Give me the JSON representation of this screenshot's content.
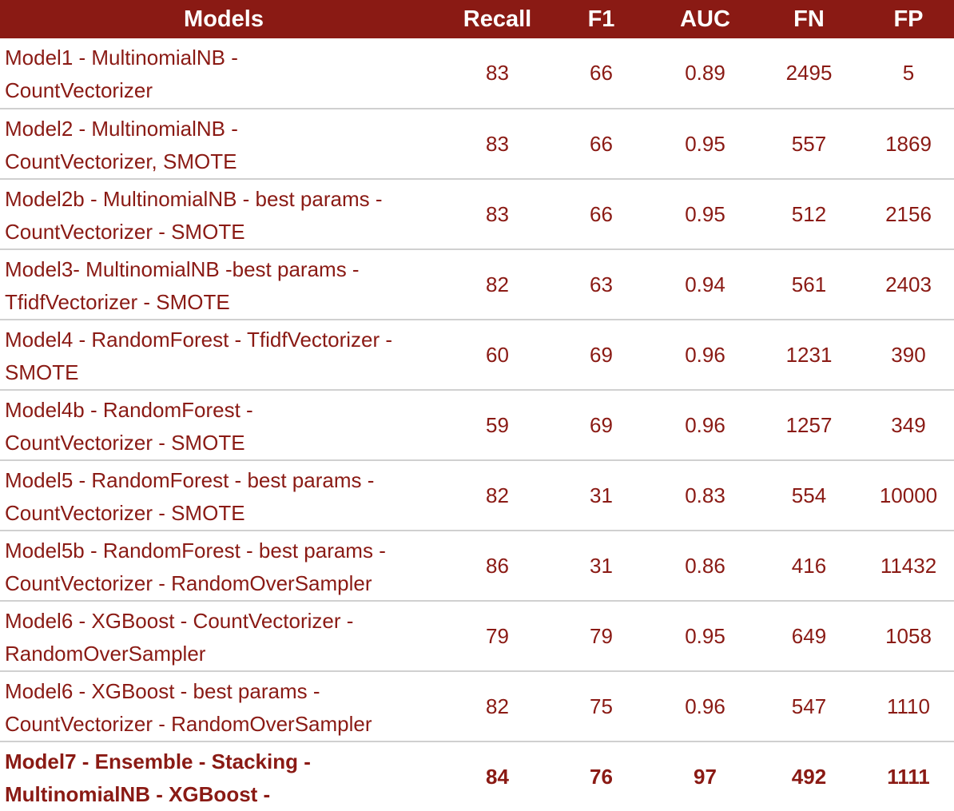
{
  "table": {
    "headers": [
      "Models",
      "Recall",
      "F1",
      "AUC",
      "FN",
      "FP"
    ],
    "rows": [
      {
        "model_line1": "Model1 - MultinomialNB -",
        "model_line2": "CountVectorizer",
        "recall": "83",
        "f1": "66",
        "auc": "0.89",
        "fn": "2495",
        "fp": "5"
      },
      {
        "model_line1": "Model2 - MultinomialNB -",
        "model_line2": "CountVectorizer, SMOTE",
        "recall": "83",
        "f1": "66",
        "auc": "0.95",
        "fn": "557",
        "fp": "1869"
      },
      {
        "model_line1": "Model2b - MultinomialNB - best params -",
        "model_line2": "CountVectorizer - SMOTE",
        "recall": "83",
        "f1": "66",
        "auc": "0.95",
        "fn": "512",
        "fp": "2156"
      },
      {
        "model_line1": "Model3- MultinomialNB -best params -",
        "model_line2": "TfidfVectorizer - SMOTE",
        "recall": "82",
        "f1": "63",
        "auc": "0.94",
        "fn": "561",
        "fp": "2403"
      },
      {
        "model_line1": "Model4 - RandomForest - TfidfVectorizer -",
        "model_line2": "SMOTE",
        "recall": "60",
        "f1": "69",
        "auc": "0.96",
        "fn": "1231",
        "fp": "390"
      },
      {
        "model_line1": "Model4b - RandomForest -",
        "model_line2": "CountVectorizer - SMOTE",
        "recall": "59",
        "f1": "69",
        "auc": "0.96",
        "fn": "1257",
        "fp": "349"
      },
      {
        "model_line1": "Model5 - RandomForest - best params -",
        "model_line2": "CountVectorizer - SMOTE",
        "recall": "82",
        "f1": "31",
        "auc": "0.83",
        "fn": "554",
        "fp": "10000"
      },
      {
        "model_line1": "Model5b - RandomForest - best params -",
        "model_line2": "CountVectorizer - RandomOverSampler",
        "recall": "86",
        "f1": "31",
        "auc": "0.86",
        "fn": "416",
        "fp": "11432"
      },
      {
        "model_line1": "Model6 - XGBoost - CountVectorizer -",
        "model_line2": "RandomOverSampler",
        "recall": "79",
        "f1": "79",
        "auc": "0.95",
        "fn": "649",
        "fp": "1058"
      },
      {
        "model_line1": "Model6 - XGBoost - best params -",
        "model_line2": "CountVectorizer - RandomOverSampler",
        "recall": "82",
        "f1": "75",
        "auc": "0.96",
        "fn": "547",
        "fp": "1110"
      },
      {
        "model_line1": "Model7 - Ensemble - Stacking -",
        "model_line2": "MultinomialNB - XGBoost -",
        "recall": "84",
        "f1": "76",
        "auc": "97",
        "fn": "492",
        "fp": "1111"
      }
    ]
  },
  "colors": {
    "header_bg": "#8a1a14",
    "header_text": "#ffffff",
    "body_text": "#8a1a14",
    "row_divider": "#d0d0d0"
  }
}
